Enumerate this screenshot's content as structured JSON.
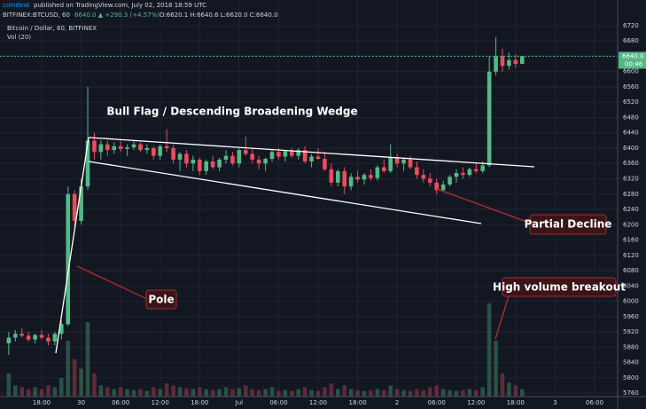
{
  "header": {
    "author": "coindesk",
    "published": "published on TradingView.com, July 02, 2018 18:59 UTC",
    "symbol": "BITFINEX:BTCUSD, 60",
    "change": "6640.0 ▲ +290.3 (+4.57%)",
    "ohlc": "O:6620.1 H:6640.6 L:6620.0 C:6640.0",
    "instrument": "Bitcoin / Dollar, 60, BITFINEX",
    "volume_label": "Vol (20)"
  },
  "chart_data": {
    "type": "candlestick",
    "up_color": "#53b987",
    "down_color": "#eb4d5c",
    "grid": true,
    "xlim": [
      -6.33,
      87.5
    ],
    "ylim": [
      5751,
      6787
    ],
    "xticks": [
      {
        "value": 0,
        "label": "18:00"
      },
      {
        "value": 6,
        "label": "30"
      },
      {
        "value": 12,
        "label": "06:00"
      },
      {
        "value": 18,
        "label": "12:00"
      },
      {
        "value": 24,
        "label": "18:00"
      },
      {
        "value": 30,
        "label": "Jul"
      },
      {
        "value": 36,
        "label": "06:00"
      },
      {
        "value": 42,
        "label": "12:00"
      },
      {
        "value": 48,
        "label": "18:00"
      },
      {
        "value": 54,
        "label": "2"
      },
      {
        "value": 60,
        "label": "06:00"
      },
      {
        "value": 66,
        "label": "12:00"
      },
      {
        "value": 72,
        "label": "18:00"
      },
      {
        "value": 78,
        "label": "3"
      },
      {
        "value": 84,
        "label": "06:00"
      }
    ],
    "yticks": [
      5760,
      5800,
      5840,
      5880,
      5920,
      5960,
      6000,
      6040,
      6080,
      6120,
      6160,
      6200,
      6240,
      6280,
      6320,
      6360,
      6400,
      6440,
      6480,
      6520,
      6560,
      6600,
      6640,
      6680,
      6720
    ],
    "x": [
      -5,
      -4,
      -3,
      -2,
      -1,
      0,
      1,
      2,
      3,
      4,
      5,
      6,
      7,
      8,
      9,
      10,
      11,
      12,
      13,
      14,
      15,
      16,
      17,
      18,
      19,
      20,
      21,
      22,
      23,
      24,
      25,
      26,
      27,
      28,
      29,
      30,
      31,
      32,
      33,
      34,
      35,
      36,
      37,
      38,
      39,
      40,
      41,
      42,
      43,
      44,
      45,
      46,
      47,
      48,
      49,
      50,
      51,
      52,
      53,
      54,
      55,
      56,
      57,
      58,
      59,
      60,
      61,
      62,
      63,
      64,
      65,
      66,
      67,
      68,
      69,
      70,
      71,
      72,
      73
    ],
    "open": [
      5890,
      5905,
      5915,
      5910,
      5900,
      5912,
      5905,
      5895,
      5915,
      5940,
      6280,
      6210,
      6300,
      6420,
      6390,
      6410,
      6395,
      6405,
      6398,
      6402,
      6410,
      6395,
      6400,
      6380,
      6405,
      6400,
      6370,
      6385,
      6360,
      6370,
      6340,
      6365,
      6350,
      6370,
      6380,
      6360,
      6395,
      6385,
      6370,
      6360,
      6372,
      6390,
      6378,
      6392,
      6380,
      6395,
      6365,
      6378,
      6372,
      6345,
      6310,
      6340,
      6300,
      6325,
      6318,
      6330,
      6322,
      6350,
      6340,
      6375,
      6360,
      6370,
      6350,
      6330,
      6320,
      6310,
      6290,
      6305,
      6325,
      6335,
      6330,
      6345,
      6340,
      6355,
      6600,
      6640,
      6615,
      6630,
      6620
    ],
    "high": [
      5920,
      5925,
      5930,
      5920,
      5915,
      5925,
      5915,
      5920,
      5950,
      6300,
      6290,
      6320,
      6560,
      6440,
      6420,
      6420,
      6415,
      6420,
      6410,
      6420,
      6415,
      6410,
      6405,
      6410,
      6450,
      6410,
      6390,
      6395,
      6380,
      6375,
      6370,
      6380,
      6375,
      6395,
      6390,
      6400,
      6430,
      6400,
      6380,
      6375,
      6395,
      6400,
      6395,
      6400,
      6400,
      6405,
      6385,
      6400,
      6390,
      6360,
      6345,
      6350,
      6335,
      6340,
      6335,
      6345,
      6355,
      6370,
      6410,
      6385,
      6375,
      6380,
      6365,
      6345,
      6335,
      6320,
      6315,
      6330,
      6345,
      6350,
      6350,
      6360,
      6365,
      6640,
      6690,
      6660,
      6650,
      6645,
      6641
    ],
    "low": [
      5860,
      5895,
      5905,
      5895,
      5890,
      5900,
      5885,
      5885,
      5900,
      5935,
      6190,
      6200,
      6290,
      6370,
      6370,
      6380,
      6385,
      6390,
      6380,
      6395,
      6390,
      6385,
      6370,
      6370,
      6390,
      6360,
      6340,
      6350,
      6340,
      6330,
      6330,
      6345,
      6340,
      6360,
      6355,
      6350,
      6380,
      6360,
      6345,
      6340,
      6365,
      6370,
      6365,
      6375,
      6370,
      6360,
      6350,
      6370,
      6340,
      6300,
      6300,
      6280,
      6290,
      6310,
      6305,
      6315,
      6315,
      6335,
      6335,
      6350,
      6340,
      6345,
      6320,
      6310,
      6300,
      6280,
      6285,
      6300,
      6310,
      6320,
      6325,
      6335,
      6335,
      6350,
      6590,
      6600,
      6605,
      6610,
      6620
    ],
    "close": [
      5905,
      5915,
      5910,
      5900,
      5912,
      5905,
      5895,
      5915,
      5940,
      6280,
      6210,
      6300,
      6420,
      6390,
      6410,
      6395,
      6405,
      6398,
      6402,
      6410,
      6395,
      6400,
      6380,
      6405,
      6400,
      6370,
      6385,
      6360,
      6370,
      6340,
      6365,
      6350,
      6370,
      6380,
      6360,
      6395,
      6385,
      6370,
      6360,
      6372,
      6390,
      6378,
      6392,
      6380,
      6395,
      6365,
      6378,
      6372,
      6345,
      6310,
      6340,
      6300,
      6325,
      6318,
      6330,
      6322,
      6350,
      6340,
      6375,
      6360,
      6370,
      6350,
      6330,
      6320,
      6310,
      6290,
      6305,
      6325,
      6335,
      6330,
      6345,
      6340,
      6355,
      6600,
      6640,
      6615,
      6630,
      6620,
      6640
    ],
    "volume": [
      25,
      12,
      10,
      8,
      10,
      8,
      12,
      10,
      20,
      60,
      40,
      30,
      80,
      25,
      12,
      10,
      8,
      10,
      8,
      7,
      8,
      6,
      10,
      8,
      14,
      12,
      10,
      9,
      8,
      10,
      8,
      7,
      8,
      10,
      8,
      9,
      12,
      8,
      7,
      8,
      10,
      6,
      7,
      6,
      8,
      10,
      7,
      6,
      10,
      14,
      8,
      12,
      8,
      7,
      6,
      7,
      8,
      7,
      12,
      8,
      7,
      6,
      8,
      7,
      10,
      12,
      8,
      7,
      6,
      7,
      8,
      7,
      10,
      100,
      60,
      25,
      15,
      12,
      8
    ],
    "price_marker": {
      "value": 6640,
      "label": "6640.0"
    },
    "price_marker_countdown": "00:46",
    "annotations": [
      "Bull Flag / Descending Broadening Wedge",
      "Partial Decline",
      "Pole",
      "High volume breakout"
    ]
  }
}
